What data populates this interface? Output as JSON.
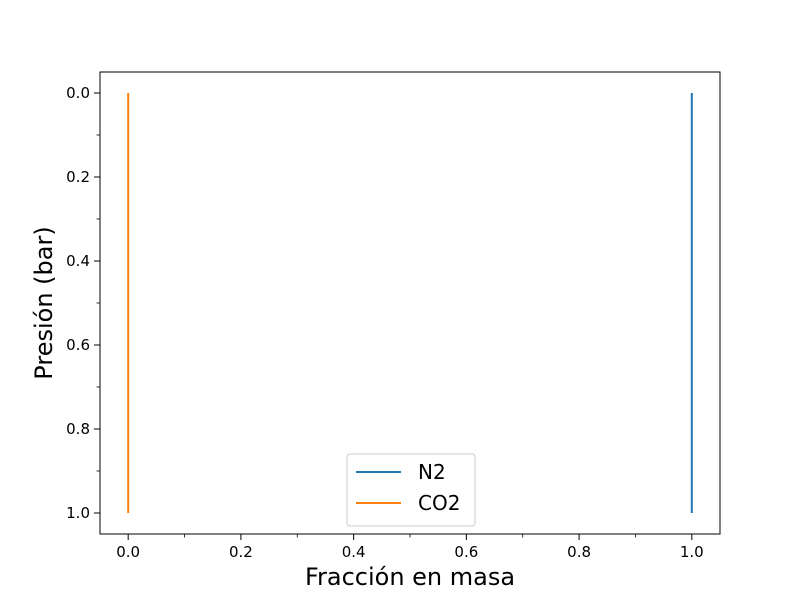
{
  "chart_data": {
    "type": "line",
    "title": "",
    "xlabel": "Fracción en masa",
    "ylabel": "Presión (bar)",
    "xlim": [
      -0.05,
      1.05
    ],
    "ylim": [
      1.05,
      -0.05
    ],
    "y_inverted": true,
    "x_ticks": [
      0.0,
      0.2,
      0.4,
      0.6,
      0.8,
      1.0
    ],
    "x_tick_labels": [
      "0.0",
      "0.2",
      "0.4",
      "0.6",
      "0.8",
      "1.0"
    ],
    "y_ticks": [
      0.0,
      0.2,
      0.4,
      0.6,
      0.8,
      1.0
    ],
    "y_tick_labels": [
      "0.0",
      "0.2",
      "0.4",
      "0.6",
      "0.8",
      "1.0"
    ],
    "minor_ticks": true,
    "grid": false,
    "legend_position": "bottom-center",
    "series": [
      {
        "name": "N2",
        "color": "#1f77b4",
        "x": [
          1.0,
          1.0
        ],
        "y": [
          0.0,
          1.0
        ]
      },
      {
        "name": "CO2",
        "color": "#ff7f0e",
        "x": [
          0.0,
          0.0
        ],
        "y": [
          0.0,
          1.0
        ]
      }
    ]
  }
}
